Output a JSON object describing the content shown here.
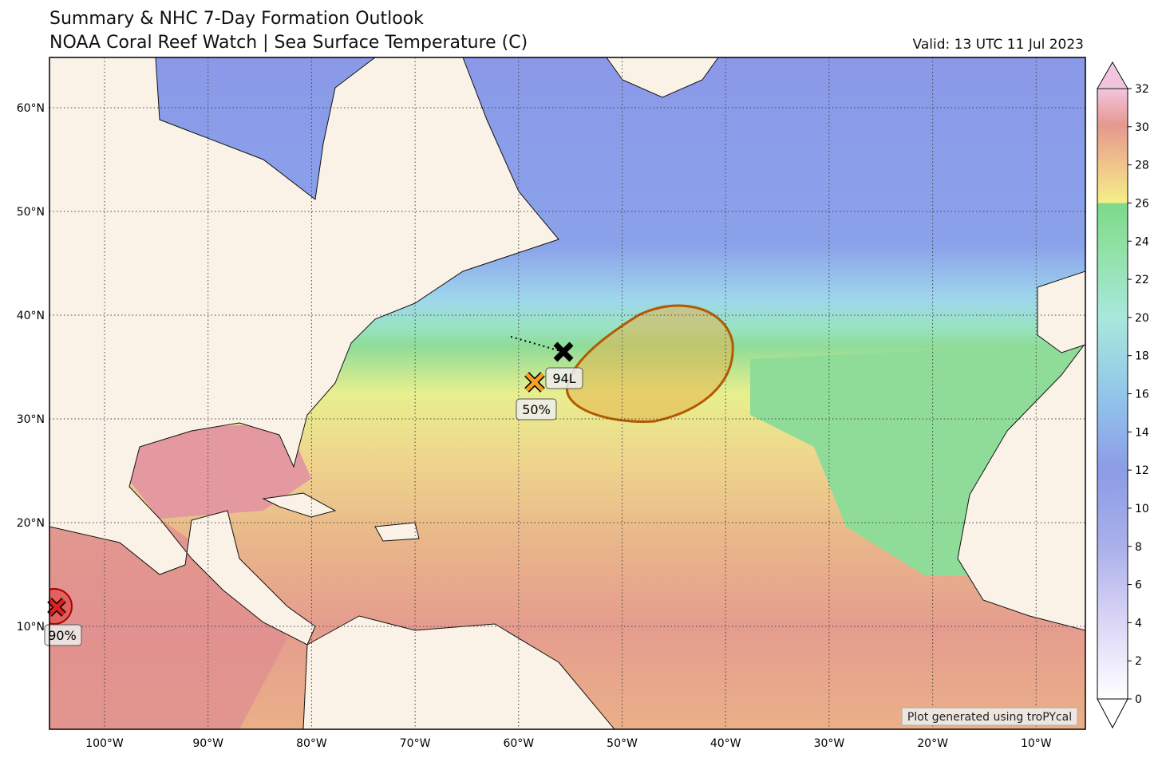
{
  "header": {
    "title": "Summary & NHC 7-Day Formation Outlook",
    "subtitle": "NOAA Coral Reef Watch | Sea Surface Temperature (C)",
    "valid": "Valid: 13 UTC 11 Jul 2023"
  },
  "map": {
    "lat_ticks": [
      {
        "value": 60,
        "label": "60°N"
      },
      {
        "value": 50,
        "label": "50°N"
      },
      {
        "value": 40,
        "label": "40°N"
      },
      {
        "value": 30,
        "label": "30°N"
      },
      {
        "value": 20,
        "label": "20°N"
      },
      {
        "value": 10,
        "label": "10°N"
      }
    ],
    "lon_ticks": [
      {
        "value": -100,
        "label": "100°W"
      },
      {
        "value": -90,
        "label": "90°W"
      },
      {
        "value": -80,
        "label": "80°W"
      },
      {
        "value": -70,
        "label": "70°W"
      },
      {
        "value": -60,
        "label": "60°W"
      },
      {
        "value": -50,
        "label": "50°W"
      },
      {
        "value": -40,
        "label": "40°W"
      },
      {
        "value": -30,
        "label": "30°W"
      },
      {
        "value": -20,
        "label": "20°W"
      },
      {
        "value": -10,
        "label": "10°W"
      }
    ],
    "systems": [
      {
        "label": "94L"
      },
      {
        "label": "50%"
      },
      {
        "label": "90%"
      }
    ],
    "credit": "Plot generated using troPYcal"
  },
  "colorbar": {
    "ticks": [
      0,
      2,
      4,
      6,
      8,
      10,
      12,
      14,
      16,
      18,
      20,
      22,
      24,
      26,
      28,
      30,
      32
    ]
  }
}
